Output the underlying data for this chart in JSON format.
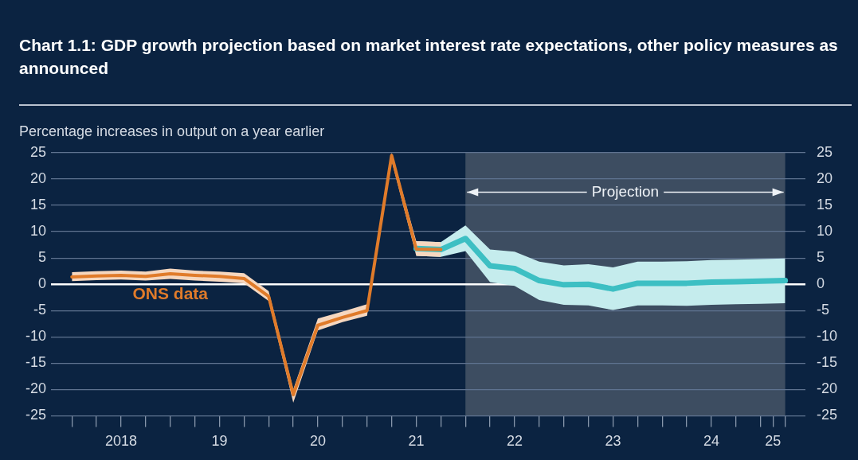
{
  "chart_data": {
    "type": "line",
    "title": "Chart 1.1: GDP growth projection based on market interest rate expectations, other policy measures as announced",
    "ylabel": "Percentage increases in output on a year earlier",
    "series": [
      {
        "name": "ONS data",
        "color": "#e07b2a",
        "x": [
          "2018-01",
          "2018-04",
          "2018-07",
          "2018-10",
          "2019-01",
          "2019-04",
          "2019-07",
          "2019-10",
          "2020-01",
          "2020-04",
          "2020-07",
          "2020-10",
          "2021-01",
          "2021-04",
          "2021-07",
          "2021-10"
        ],
        "values": [
          1.4,
          1.6,
          1.7,
          1.5,
          2.0,
          1.7,
          1.5,
          1.1,
          -2.3,
          -21.0,
          -7.8,
          -6.3,
          -5.0,
          24.5,
          6.7,
          6.6
        ],
        "lower": [
          0.6,
          0.8,
          0.9,
          0.7,
          1.0,
          0.7,
          0.5,
          0.2,
          -3.2,
          -22.5,
          -8.8,
          -7.2,
          -6.0,
          23.5,
          5.4,
          5.2
        ],
        "upper": [
          2.3,
          2.5,
          2.6,
          2.4,
          3.0,
          2.6,
          2.4,
          2.1,
          -1.3,
          -20.0,
          -6.5,
          -5.2,
          -3.8,
          25.0,
          8.2,
          8.0
        ]
      },
      {
        "color": "#3dbfc3",
        "x": [
          "2021-07",
          "2021-10",
          "2022-01",
          "2022-04",
          "2022-07",
          "2022-10",
          "2023-01",
          "2023-04",
          "2023-07",
          "2023-10",
          "2024-01",
          "2024-04",
          "2024-07",
          "2024-10",
          "2025-01",
          "2025-04"
        ],
        "values": [
          6.8,
          6.6,
          8.7,
          3.5,
          3.0,
          0.7,
          -0.1,
          0.0,
          -0.9,
          0.2,
          0.2,
          0.2,
          0.4,
          0.5,
          0.6,
          0.7
        ],
        "lower": [
          5.4,
          5.2,
          6.3,
          0.4,
          -0.3,
          -3.0,
          -3.9,
          -4.0,
          -4.9,
          -4.0,
          -4.0,
          -4.1,
          -3.9,
          -3.8,
          -3.7,
          -3.6
        ],
        "upper": [
          8.2,
          8.0,
          11.2,
          6.6,
          6.2,
          4.3,
          3.6,
          3.8,
          3.2,
          4.3,
          4.3,
          4.4,
          4.6,
          4.7,
          4.8,
          4.9
        ]
      }
    ],
    "xlim": [
      "2017-10-15",
      "2025-06-15"
    ],
    "xticks": [
      {
        "value": "2018-01",
        "label": null
      },
      {
        "value": "2018-04",
        "label": null
      },
      {
        "value": "2018-07",
        "label": "2018"
      },
      {
        "value": "2018-10",
        "label": null
      },
      {
        "value": "2019-01",
        "label": null
      },
      {
        "value": "2019-04",
        "label": null
      },
      {
        "value": "2019-07",
        "label": "19"
      },
      {
        "value": "2019-10",
        "label": null
      },
      {
        "value": "2020-01",
        "label": null
      },
      {
        "value": "2020-04",
        "label": null
      },
      {
        "value": "2020-07",
        "label": "20"
      },
      {
        "value": "2020-10",
        "label": null
      },
      {
        "value": "2021-01",
        "label": null
      },
      {
        "value": "2021-04",
        "label": null
      },
      {
        "value": "2021-07",
        "label": "21"
      },
      {
        "value": "2021-10",
        "label": null
      },
      {
        "value": "2022-01",
        "label": null
      },
      {
        "value": "2022-04",
        "label": null
      },
      {
        "value": "2022-07",
        "label": "22"
      },
      {
        "value": "2022-10",
        "label": null
      },
      {
        "value": "2023-01",
        "label": null
      },
      {
        "value": "2023-04",
        "label": null
      },
      {
        "value": "2023-07",
        "label": "23"
      },
      {
        "value": "2023-10",
        "label": null
      },
      {
        "value": "2024-01",
        "label": null
      },
      {
        "value": "2024-04",
        "label": null
      },
      {
        "value": "2024-07",
        "label": "24"
      },
      {
        "value": "2024-10",
        "label": null
      },
      {
        "value": "2025-01",
        "label": null
      },
      {
        "value": "2025-02-15",
        "label": "25"
      },
      {
        "value": "2025-04",
        "label": null
      }
    ],
    "ylim": [
      -25,
      25
    ],
    "yticks": [
      -25,
      -20,
      -15,
      -10,
      -5,
      0,
      5,
      10,
      15,
      20,
      25
    ],
    "y2lim": [
      -25,
      25
    ],
    "y2ticks": [
      -25,
      -20,
      -15,
      -10,
      -5,
      0,
      5,
      10,
      15,
      20,
      25
    ],
    "bands": [
      {
        "axis": "x",
        "from": "2022-01",
        "to": "2025-04",
        "label": "Projection",
        "color": "#3d4d61"
      }
    ],
    "grid": "y",
    "legend": false,
    "marker": "none",
    "line_style": "solid"
  }
}
